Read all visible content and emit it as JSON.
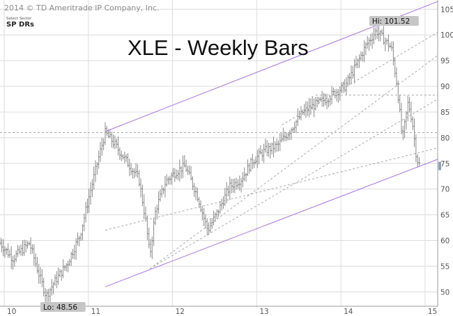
{
  "chart_data": {
    "type": "ohlc",
    "title": "XLE - Weekly Bars",
    "copyright": "2014 © TD Ameritrade IP Company, Inc.",
    "logo": {
      "line1": "Select Sector",
      "line2": "SP DRs"
    },
    "x_ticks": [
      "10",
      "11",
      "12",
      "13",
      "14",
      "15"
    ],
    "x_tick_values": [
      10,
      11,
      12,
      13,
      14,
      15
    ],
    "xlim": [
      9.95,
      15.15
    ],
    "y_ticks": [
      "50",
      "55",
      "60",
      "65",
      "70",
      "75",
      "80",
      "85",
      "90",
      "95",
      "100",
      "105"
    ],
    "y_tick_values": [
      50,
      55,
      60,
      65,
      70,
      75,
      80,
      85,
      90,
      95,
      100,
      105
    ],
    "ylim": [
      47.2,
      106.8
    ],
    "y_axis_side": "right",
    "grid": true,
    "callouts": [
      {
        "label": "Hi: 101.52",
        "x": 14.42,
        "y": 101.52
      },
      {
        "label": "Lo: 48.56",
        "x": 10.48,
        "y": 48.56
      }
    ],
    "price_path": [
      [
        9.95,
        59.5
      ],
      [
        10.1,
        56.5
      ],
      [
        10.3,
        59.5
      ],
      [
        10.42,
        53.0
      ],
      [
        10.5,
        49.2
      ],
      [
        10.6,
        52.0
      ],
      [
        10.75,
        55.5
      ],
      [
        10.9,
        61.0
      ],
      [
        11.0,
        68.0
      ],
      [
        11.12,
        76.0
      ],
      [
        11.2,
        81.0
      ],
      [
        11.3,
        79.0
      ],
      [
        11.45,
        75.5
      ],
      [
        11.6,
        72.0
      ],
      [
        11.68,
        64.0
      ],
      [
        11.73,
        57.0
      ],
      [
        11.8,
        66.0
      ],
      [
        11.92,
        71.5
      ],
      [
        12.05,
        73.5
      ],
      [
        12.15,
        74.5
      ],
      [
        12.3,
        68.5
      ],
      [
        12.38,
        64.0
      ],
      [
        12.42,
        62.0
      ],
      [
        12.55,
        66.0
      ],
      [
        12.68,
        70.5
      ],
      [
        12.82,
        72.0
      ],
      [
        12.95,
        75.5
      ],
      [
        13.1,
        77.5
      ],
      [
        13.25,
        78.5
      ],
      [
        13.4,
        81.5
      ],
      [
        13.55,
        85.0
      ],
      [
        13.7,
        86.5
      ],
      [
        13.82,
        87.5
      ],
      [
        13.95,
        89.0
      ],
      [
        14.05,
        90.0
      ],
      [
        14.18,
        94.0
      ],
      [
        14.3,
        98.0
      ],
      [
        14.42,
        100.8
      ],
      [
        14.52,
        99.0
      ],
      [
        14.6,
        97.5
      ],
      [
        14.67,
        90.0
      ],
      [
        14.73,
        79.5
      ],
      [
        14.8,
        87.0
      ],
      [
        14.85,
        83.0
      ],
      [
        14.9,
        76.0
      ],
      [
        14.94,
        74.5
      ]
    ],
    "channel_lines": [
      {
        "from": [
          11.2,
          81.2
        ],
        "to": [
          15.15,
          106.5
        ],
        "style": "solid"
      },
      {
        "from": [
          11.2,
          51.0
        ],
        "to": [
          15.15,
          75.8
        ],
        "style": "solid"
      },
      {
        "from": [
          11.73,
          54.5
        ],
        "to": [
          15.15,
          87.5
        ],
        "style": "dashed"
      },
      {
        "from": [
          11.73,
          54.5
        ],
        "to": [
          15.15,
          96.0
        ],
        "style": "dashed"
      },
      {
        "from": [
          11.2,
          62.0
        ],
        "to": [
          15.15,
          78.0
        ],
        "style": "dashed"
      },
      {
        "from": [
          13.3,
          82.5
        ],
        "to": [
          15.15,
          100.5
        ],
        "style": "dashed"
      }
    ],
    "horizontal_levels": [
      {
        "y": 81.0,
        "from": 9.95,
        "to": 15.15
      },
      {
        "y": 88.3,
        "from": 13.7,
        "to": 15.15
      }
    ],
    "colors": {
      "bars": "#8a8a8a",
      "channel": "#a675e0",
      "dashed": "#a8a8a8",
      "grid": "#dcdcdc",
      "callout_bg": "#c6c6c6",
      "price_marker": "#8fa0b3"
    }
  }
}
